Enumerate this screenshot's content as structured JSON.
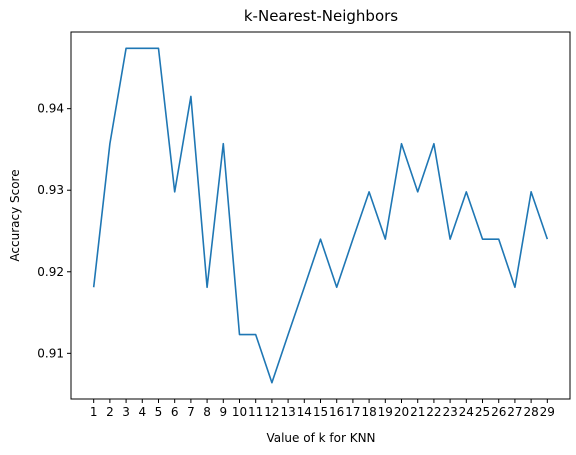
{
  "chart_data": {
    "type": "line",
    "title": "k-Nearest-Neighbors",
    "xlabel": "Value of k for KNN",
    "ylabel": "Accuracy Score",
    "x": [
      1,
      2,
      3,
      4,
      5,
      6,
      7,
      8,
      9,
      10,
      11,
      12,
      13,
      14,
      15,
      16,
      17,
      18,
      19,
      20,
      21,
      22,
      23,
      24,
      25,
      26,
      27,
      28,
      29
    ],
    "series": [
      {
        "name": "",
        "values": [
          0.9181,
          0.9357,
          0.9474,
          0.9474,
          0.9474,
          0.9298,
          0.9415,
          0.9181,
          0.9357,
          0.9123,
          0.9123,
          0.9064,
          0.9123,
          0.9181,
          0.924,
          0.9181,
          0.924,
          0.9298,
          0.924,
          0.9357,
          0.9298,
          0.9357,
          0.924,
          0.9298,
          0.924,
          0.924,
          0.9181,
          0.9298,
          0.924
        ]
      }
    ],
    "xlim": [
      -0.4,
      30.4
    ],
    "ylim": [
      0.9044,
      0.9494
    ],
    "yticks": [
      0.91,
      0.92,
      0.93,
      0.94
    ],
    "ytick_labels": [
      "0.91",
      "0.92",
      "0.93",
      "0.94"
    ],
    "grid": false,
    "line_color": "#1f77b4"
  }
}
